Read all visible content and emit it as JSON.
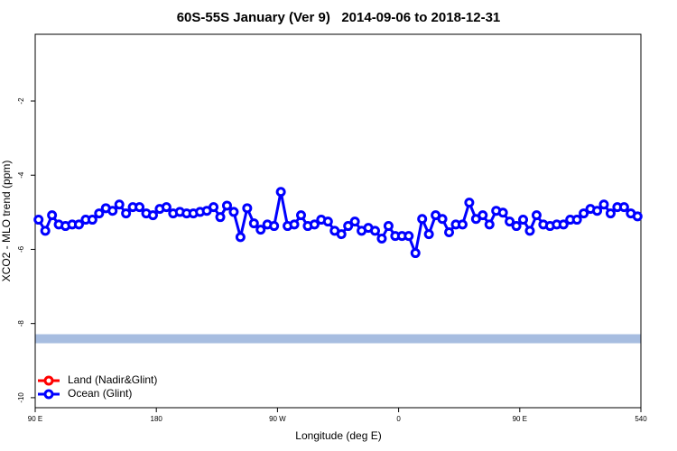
{
  "chart_data": {
    "type": "line",
    "title": "60S-55S January (Ver 9)   2014-09-06 to 2018-12-31",
    "x_label": "Longitude (deg E)",
    "y_label": "XCO2 - MLO trend (ppm)",
    "xlim": [
      90,
      540
    ],
    "xticks": [
      {
        "value": 90,
        "label": "90 E"
      },
      180,
      {
        "value": 270,
        "label": "90 W"
      },
      {
        "value": 360,
        "label": "0"
      },
      {
        "value": 450,
        "label": "90 E"
      },
      540
    ],
    "ylim": [
      -10.27,
      -0.2
    ],
    "yticks": [
      -2,
      -4,
      -6,
      -8,
      -10
    ],
    "band": {
      "value": -8.41,
      "color": "#a7bde0"
    },
    "x": [
      92.5,
      97.5,
      102.5,
      107.5,
      112.5,
      117.5,
      122.5,
      127.5,
      132.5,
      137.5,
      142.5,
      147.5,
      152.5,
      157.5,
      162.5,
      167.5,
      172.5,
      177.5,
      182.5,
      187.5,
      192.5,
      197.5,
      202.5,
      207.5,
      212.5,
      217.5,
      222.5,
      227.5,
      232.5,
      237.5,
      242.5,
      247.5,
      252.5,
      257.5,
      262.5,
      267.5,
      272.5,
      277.5,
      282.5,
      287.5,
      292.5,
      297.5,
      302.5,
      307.5,
      312.5,
      317.5,
      322.5,
      327.5,
      332.5,
      337.5,
      342.5,
      347.5,
      352.5,
      357.5,
      362.5,
      367.5,
      372.5,
      377.5,
      382.5,
      387.5,
      392.5,
      397.5,
      402.5,
      407.5,
      412.5,
      417.5,
      422.5,
      427.5,
      432.5,
      437.5,
      442.5,
      447.5,
      452.5,
      457.5,
      462.5,
      467.5,
      472.5,
      477.5,
      482.5,
      487.5,
      492.5,
      497.5,
      502.5,
      507.5,
      512.5,
      517.5,
      522.5,
      527.5,
      532.5,
      537.5
    ],
    "series": [
      {
        "name": "Land (Nadir&Glint)",
        "color": "#ff0000",
        "values": [
          null,
          null,
          null,
          null,
          null,
          null,
          null,
          null,
          null,
          null,
          null,
          null,
          null,
          null,
          null,
          null,
          null,
          null,
          null,
          null,
          null,
          null,
          null,
          null,
          null,
          null,
          null,
          null,
          null,
          null,
          null,
          null,
          null,
          null,
          null,
          null,
          null,
          null,
          null,
          null,
          null,
          null,
          null,
          null,
          null,
          null,
          null,
          null,
          null,
          null,
          null,
          null,
          null,
          null,
          null,
          null,
          null,
          null,
          null,
          null,
          null,
          null,
          null,
          null,
          null,
          null,
          null,
          null,
          null,
          null,
          null,
          null,
          null,
          null,
          null,
          null,
          null,
          null,
          null,
          null,
          null,
          null,
          null,
          null,
          null,
          null,
          null,
          null,
          null,
          null
        ]
      },
      {
        "name": "Ocean (Glint)",
        "color": "#0000ff",
        "values": [
          -5.2,
          -5.5,
          -5.08,
          -5.33,
          -5.37,
          -5.33,
          -5.33,
          -5.2,
          -5.2,
          -5.03,
          -4.89,
          -4.96,
          -4.79,
          -5.03,
          -4.86,
          -4.86,
          -5.03,
          -5.08,
          -4.91,
          -4.86,
          -5.03,
          -4.99,
          -5.03,
          -5.03,
          -4.99,
          -4.96,
          -4.86,
          -5.13,
          -4.82,
          -4.99,
          -5.67,
          -4.89,
          -5.3,
          -5.47,
          -5.33,
          -5.37,
          -4.45,
          -5.37,
          -5.33,
          -5.08,
          -5.37,
          -5.33,
          -5.2,
          -5.25,
          -5.5,
          -5.59,
          -5.37,
          -5.25,
          -5.5,
          -5.42,
          -5.5,
          -5.71,
          -5.37,
          -5.64,
          -5.64,
          -5.64,
          -6.1,
          -5.18,
          -5.59,
          -5.08,
          -5.18,
          -5.54,
          -5.33,
          -5.33,
          -4.74,
          -5.18,
          -5.08,
          -5.33,
          -4.96,
          -5.01,
          -5.25,
          -5.37,
          -5.2,
          -5.5,
          -5.08,
          -5.33,
          -5.37,
          -5.33,
          -5.33,
          -5.2,
          -5.2,
          -5.03,
          -4.91,
          -4.96,
          -4.79,
          -5.03,
          -4.86,
          -4.86,
          -5.03,
          -5.11
        ]
      }
    ]
  }
}
